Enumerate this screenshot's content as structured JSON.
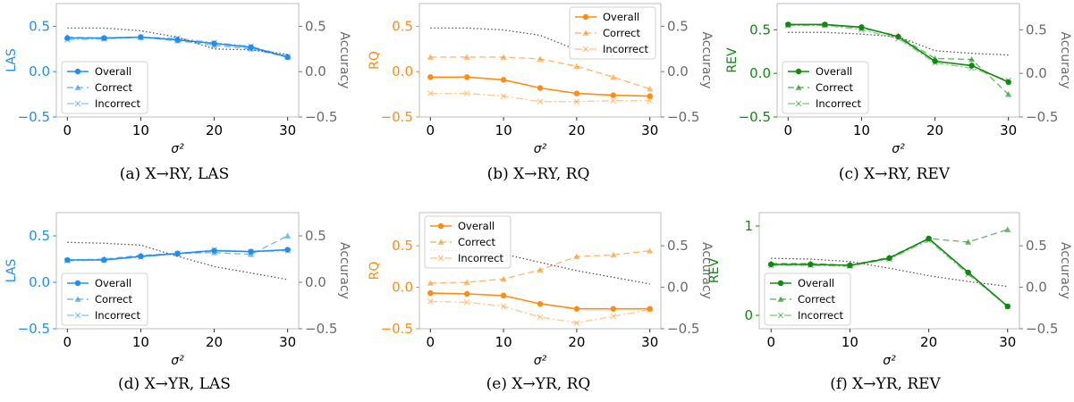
{
  "chart_data": [
    {
      "type": "line",
      "caption": "(a) X→RY, LAS",
      "color": "#1f8fef",
      "ylabel": "LAS",
      "y2label": "Accuracy",
      "xlabel": "σ²",
      "x": [
        0,
        5,
        10,
        15,
        20,
        25,
        30
      ],
      "xticks": [
        0,
        10,
        20,
        30
      ],
      "ylim": [
        -0.5,
        0.75
      ],
      "yticks": [
        -0.5,
        0.0,
        0.5
      ],
      "ytick_labels": [
        "−0.5",
        "0.0",
        "0.5"
      ],
      "y2lim": [
        -0.5,
        0.75
      ],
      "y2ticks": [
        -0.5,
        0.0,
        0.5
      ],
      "y2tick_labels": [
        "−0.5",
        "0.0",
        "0.5"
      ],
      "legend_position": "lower-left",
      "series": [
        {
          "name": "Overall",
          "values": [
            0.37,
            0.37,
            0.38,
            0.35,
            0.31,
            0.27,
            0.16
          ]
        },
        {
          "name": "Correct",
          "values": [
            0.38,
            0.37,
            0.38,
            0.34,
            0.29,
            0.25,
            0.16
          ]
        },
        {
          "name": "Incorrect",
          "values": [
            0.35,
            0.36,
            0.38,
            0.37,
            0.32,
            0.28,
            0.17
          ]
        },
        {
          "name": "",
          "axis": "right",
          "values": [
            0.48,
            0.48,
            0.45,
            0.38,
            0.25,
            0.24,
            0.19
          ]
        }
      ]
    },
    {
      "type": "line",
      "caption": "(b) X→RY, RQ",
      "color": "#ff8c10",
      "ylabel": "RQ",
      "y2label": "Accuracy",
      "xlabel": "σ²",
      "x": [
        0,
        5,
        10,
        15,
        20,
        25,
        30
      ],
      "xticks": [
        0,
        10,
        20,
        30
      ],
      "ylim": [
        -0.5,
        0.75
      ],
      "yticks": [
        -0.5,
        0.0,
        0.5
      ],
      "ytick_labels": [
        "−0.5",
        "0.0",
        "0.5"
      ],
      "y2lim": [
        -0.5,
        0.75
      ],
      "y2ticks": [
        -0.5,
        0.0,
        0.5
      ],
      "y2tick_labels": [
        "−0.5",
        "0.0",
        "0.5"
      ],
      "legend_position": "top-right",
      "series": [
        {
          "name": "Overall",
          "values": [
            -0.06,
            -0.06,
            -0.09,
            -0.18,
            -0.24,
            -0.26,
            -0.27
          ]
        },
        {
          "name": "Correct",
          "values": [
            0.16,
            0.16,
            0.16,
            0.14,
            0.06,
            -0.06,
            -0.19
          ]
        },
        {
          "name": "Incorrect",
          "values": [
            -0.24,
            -0.24,
            -0.27,
            -0.33,
            -0.33,
            -0.32,
            -0.32
          ]
        },
        {
          "name": "",
          "axis": "right",
          "values": [
            0.48,
            0.48,
            0.46,
            0.4,
            0.24,
            0.22,
            0.21
          ]
        }
      ]
    },
    {
      "type": "line",
      "caption": "(c) X→RY, REV",
      "color": "#0f8a0f",
      "ylabel": "REV",
      "y2label": "Accuracy",
      "xlabel": "σ²",
      "x": [
        0,
        5,
        10,
        15,
        20,
        25,
        30
      ],
      "xticks": [
        0,
        10,
        20,
        30
      ],
      "ylim": [
        -0.5,
        0.8
      ],
      "yticks": [
        -0.5,
        0.0,
        0.5
      ],
      "ytick_labels": [
        "−0.5",
        "0.0",
        "0.5"
      ],
      "y2lim": [
        -0.5,
        0.8
      ],
      "y2ticks": [
        -0.5,
        0.0,
        0.5
      ],
      "y2tick_labels": [
        "−0.5",
        "0.0",
        "0.5"
      ],
      "legend_position": "lower-left",
      "series": [
        {
          "name": "Overall",
          "values": [
            0.56,
            0.56,
            0.53,
            0.42,
            0.14,
            0.09,
            -0.1
          ]
        },
        {
          "name": "Correct",
          "values": [
            0.56,
            0.56,
            0.52,
            0.43,
            0.17,
            0.16,
            -0.24
          ]
        },
        {
          "name": "Incorrect",
          "values": [
            0.55,
            0.55,
            0.5,
            0.4,
            0.12,
            0.06,
            -0.08
          ]
        },
        {
          "name": "",
          "axis": "right",
          "values": [
            0.47,
            0.47,
            0.45,
            0.42,
            0.26,
            0.23,
            0.21
          ]
        }
      ]
    },
    {
      "type": "line",
      "caption": "(d) X→YR, LAS",
      "color": "#1f8fef",
      "ylabel": "LAS",
      "y2label": "Accuracy",
      "xlabel": "σ²",
      "x": [
        0,
        5,
        10,
        15,
        20,
        25,
        30
      ],
      "xticks": [
        0,
        10,
        20,
        30
      ],
      "ylim": [
        -0.5,
        0.75
      ],
      "yticks": [
        -0.5,
        0.0,
        0.5
      ],
      "ytick_labels": [
        "−0.5",
        "0.0",
        "0.5"
      ],
      "y2lim": [
        -0.5,
        0.75
      ],
      "y2ticks": [
        -0.5,
        0.0,
        0.5
      ],
      "y2tick_labels": [
        "−0.5",
        "0.0",
        "0.5"
      ],
      "legend_position": "lower-left",
      "series": [
        {
          "name": "Overall",
          "values": [
            0.24,
            0.24,
            0.28,
            0.31,
            0.34,
            0.33,
            0.35
          ]
        },
        {
          "name": "Correct",
          "values": [
            0.24,
            0.25,
            0.29,
            0.31,
            0.32,
            0.3,
            0.5
          ]
        },
        {
          "name": "Incorrect",
          "values": [
            0.23,
            0.24,
            0.27,
            0.31,
            0.35,
            0.33,
            0.34
          ]
        },
        {
          "name": "",
          "axis": "right",
          "values": [
            0.43,
            0.42,
            0.4,
            0.28,
            0.17,
            0.1,
            0.03
          ]
        }
      ]
    },
    {
      "type": "line",
      "caption": "(e) X→YR, RQ",
      "color": "#ff8c10",
      "ylabel": "RQ",
      "y2label": "Accuracy",
      "xlabel": "σ²",
      "x": [
        0,
        5,
        10,
        15,
        20,
        25,
        30
      ],
      "xticks": [
        0,
        10,
        20,
        30
      ],
      "ylim": [
        -0.5,
        0.9
      ],
      "yticks": [
        -0.5,
        0.0,
        0.5
      ],
      "ytick_labels": [
        "−0.5",
        "0.0",
        "0.5"
      ],
      "y2lim": [
        -0.5,
        0.9
      ],
      "y2ticks": [
        -0.5,
        0.0,
        0.5
      ],
      "y2tick_labels": [
        "−0.5",
        "0.0",
        "0.5"
      ],
      "legend_position": "top-left",
      "series": [
        {
          "name": "Overall",
          "values": [
            -0.07,
            -0.08,
            -0.1,
            -0.2,
            -0.26,
            -0.26,
            -0.26
          ]
        },
        {
          "name": "Correct",
          "values": [
            0.05,
            0.06,
            0.1,
            0.21,
            0.37,
            0.39,
            0.44
          ]
        },
        {
          "name": "Incorrect",
          "values": [
            -0.17,
            -0.18,
            -0.23,
            -0.36,
            -0.43,
            -0.35,
            -0.27
          ]
        },
        {
          "name": "",
          "axis": "right",
          "values": [
            0.45,
            0.44,
            0.4,
            0.3,
            0.2,
            0.12,
            0.04
          ]
        }
      ]
    },
    {
      "type": "line",
      "caption": "(f) X→YR, REV",
      "color": "#0f8a0f",
      "ylabel": "REV",
      "y2label": "Accuracy",
      "xlabel": "σ²",
      "x": [
        0,
        5,
        10,
        15,
        20,
        25,
        30
      ],
      "xticks": [
        0,
        10,
        20,
        30
      ],
      "ylim": [
        -0.15,
        1.15
      ],
      "yticks": [
        0,
        1
      ],
      "ytick_labels": [
        "0",
        "1"
      ],
      "y2lim": [
        -0.5,
        0.9
      ],
      "y2ticks": [
        -0.5,
        0.0,
        0.5
      ],
      "y2tick_labels": [
        "−0.5",
        "0.0",
        "0.5"
      ],
      "legend_position": "lower-left",
      "series": [
        {
          "name": "Overall",
          "values": [
            0.57,
            0.57,
            0.56,
            0.64,
            0.86,
            0.48,
            0.1
          ]
        },
        {
          "name": "Correct",
          "values": [
            0.58,
            0.58,
            0.56,
            0.65,
            0.86,
            0.82,
            0.96
          ]
        },
        {
          "name": "Incorrect",
          "values": [
            0.56,
            0.56,
            0.55,
            0.63,
            0.84,
            0.46,
            0.1
          ]
        },
        {
          "name": "",
          "axis": "right",
          "values": [
            0.35,
            0.34,
            0.31,
            0.23,
            0.14,
            0.07,
            0.01
          ]
        }
      ]
    }
  ]
}
